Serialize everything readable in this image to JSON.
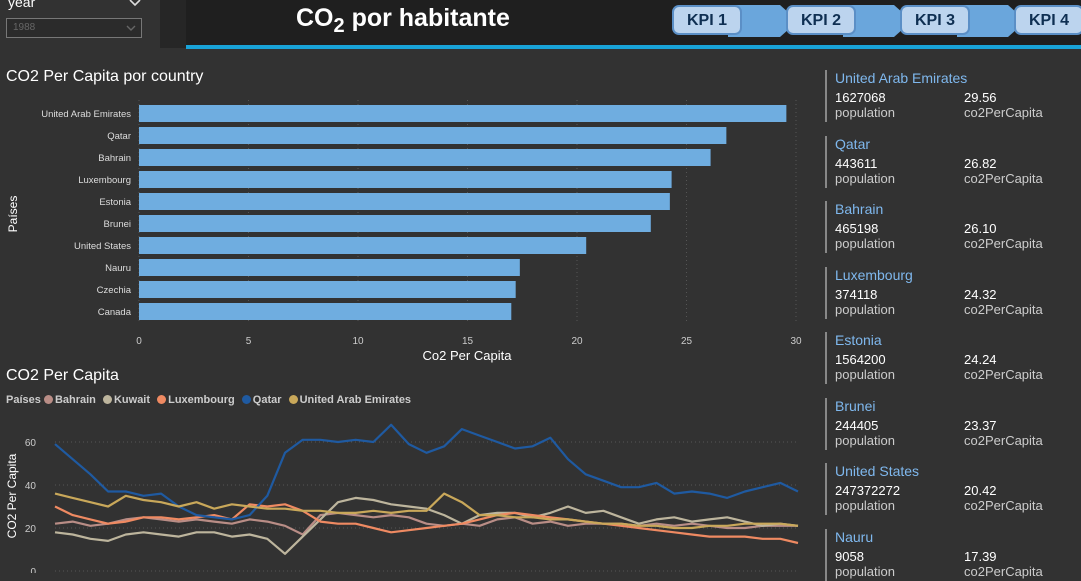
{
  "slicer": {
    "label": "year",
    "value": "1988"
  },
  "header": {
    "title_main": "CO",
    "title_sub": "2",
    "title_rest": " por habitante"
  },
  "kpi_buttons": [
    "KPI 1",
    "KPI 2",
    "KPI 3",
    "KPI 4"
  ],
  "bar_panel": {
    "title": "CO2 Per Capita por country"
  },
  "line_panel": {
    "title": "CO2 Per Capita"
  },
  "legend": {
    "title": "Países"
  },
  "cards": [
    {
      "country": "United Arab Emirates",
      "population": "1627068",
      "population_label": "population",
      "co2": "29.56",
      "co2_label": "co2PerCapita"
    },
    {
      "country": "Qatar",
      "population": "443611",
      "population_label": "population",
      "co2": "26.82",
      "co2_label": "co2PerCapita"
    },
    {
      "country": "Bahrain",
      "population": "465198",
      "population_label": "population",
      "co2": "26.10",
      "co2_label": "co2PerCapita"
    },
    {
      "country": "Luxembourg",
      "population": "374118",
      "population_label": "population",
      "co2": "24.32",
      "co2_label": "co2PerCapita"
    },
    {
      "country": "Estonia",
      "population": "1564200",
      "population_label": "population",
      "co2": "24.24",
      "co2_label": "co2PerCapita"
    },
    {
      "country": "Brunei",
      "population": "244405",
      "population_label": "population",
      "co2": "23.37",
      "co2_label": "co2PerCapita"
    },
    {
      "country": "United States",
      "population": "247372272",
      "population_label": "population",
      "co2": "20.42",
      "co2_label": "co2PerCapita"
    },
    {
      "country": "Nauru",
      "population": "9058",
      "population_label": "population",
      "co2": "17.39",
      "co2_label": "co2PerCapita"
    }
  ],
  "colors": {
    "accent": "#19a3d8",
    "bar": "#6fade0",
    "kpi_fill": "#bcd4ee",
    "kpi_border": "#5b8fc6",
    "card_country": "#7fb8ee"
  },
  "chart_data": [
    {
      "type": "bar",
      "orientation": "horizontal",
      "title": "CO2 Per Capita por country",
      "xlabel": "Co2 Per Capita",
      "ylabel": "Países",
      "xlim": [
        0,
        30
      ],
      "xticks": [
        0,
        5,
        10,
        15,
        20,
        25,
        30
      ],
      "grid": true,
      "categories": [
        "United Arab Emirates",
        "Qatar",
        "Bahrain",
        "Luxembourg",
        "Estonia",
        "Brunei",
        "United States",
        "Nauru",
        "Czechia",
        "Canada"
      ],
      "values": [
        29.56,
        26.82,
        26.1,
        24.32,
        24.24,
        23.37,
        20.42,
        17.39,
        17.2,
        17.0
      ]
    },
    {
      "type": "line",
      "title": "CO2 Per Capita",
      "ylabel": "CO2 Per Capita",
      "ylim": [
        0,
        65
      ],
      "yticks": [
        0,
        20,
        40,
        60
      ],
      "grid": true,
      "legend_position": "top-left",
      "series": [
        {
          "name": "Bahrain",
          "color": "#b98d86",
          "values": [
            22,
            23,
            21,
            22,
            24,
            25,
            24,
            23,
            24,
            23,
            22,
            24,
            23,
            21,
            17,
            26,
            27,
            26,
            25,
            26,
            25,
            22,
            21,
            22,
            21,
            24,
            25,
            22,
            23,
            21,
            22,
            22,
            22,
            21,
            22,
            21,
            22,
            21,
            20,
            20,
            21,
            21,
            21
          ]
        },
        {
          "name": "Kuwait",
          "color": "#bdb59d",
          "values": [
            18,
            17,
            15,
            14,
            17,
            18,
            17,
            16,
            18,
            18,
            16,
            17,
            15,
            8,
            16,
            24,
            32,
            34,
            33,
            31,
            30,
            29,
            26,
            22,
            26,
            27,
            27,
            25,
            27,
            30,
            27,
            28,
            25,
            22,
            24,
            25,
            23,
            24,
            25,
            23,
            21,
            22,
            21
          ]
        },
        {
          "name": "Luxembourg",
          "color": "#ef8a62",
          "values": [
            30,
            26,
            24,
            22,
            23,
            25,
            25,
            24,
            25,
            26,
            24,
            31,
            30,
            31,
            28,
            23,
            22,
            22,
            20,
            18,
            19,
            20,
            21,
            22,
            24,
            26,
            27,
            26,
            25,
            24,
            23,
            22,
            21,
            20,
            19,
            18,
            17,
            16,
            16,
            16,
            15,
            15,
            13
          ]
        },
        {
          "name": "Qatar",
          "color": "#1f5aa1",
          "values": [
            59,
            52,
            45,
            37,
            37,
            35,
            36,
            30,
            26,
            25,
            24,
            26,
            35,
            55,
            61,
            61,
            60,
            61,
            60,
            68,
            59,
            55,
            58,
            66,
            63,
            60,
            57,
            58,
            62,
            52,
            45,
            42,
            39,
            39,
            41,
            36,
            37,
            36,
            34,
            37,
            39,
            41,
            37
          ]
        },
        {
          "name": "United Arab Emirates",
          "color": "#c9a85a",
          "values": [
            36,
            34,
            32,
            30,
            35,
            33,
            32,
            30,
            32,
            29,
            31,
            30,
            29,
            29,
            28,
            28,
            27,
            27,
            28,
            27,
            28,
            28,
            36,
            32,
            26,
            26,
            25,
            25,
            24,
            24,
            23,
            22,
            22,
            21,
            21,
            20,
            20,
            21,
            21,
            22,
            22,
            22,
            21
          ]
        }
      ]
    }
  ]
}
